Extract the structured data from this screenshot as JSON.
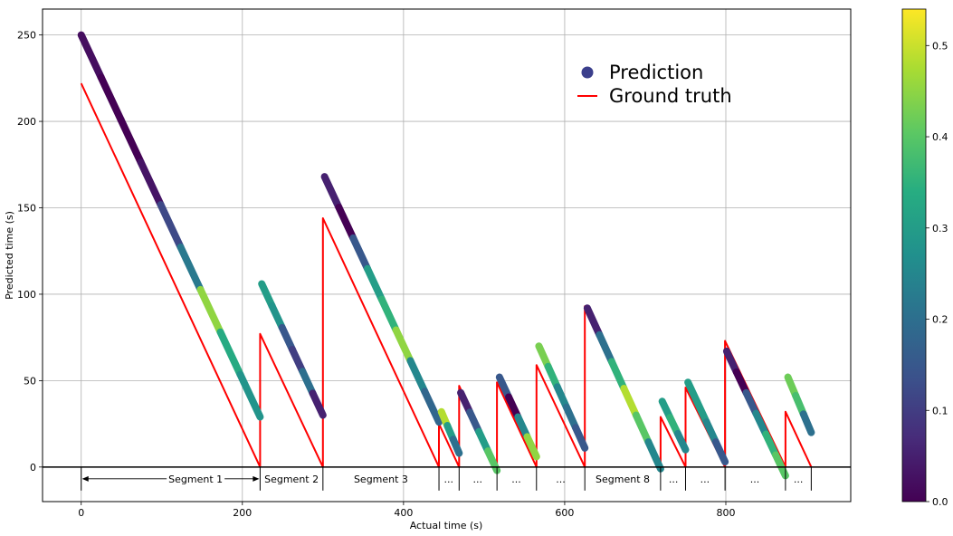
{
  "chart_data": {
    "type": "line",
    "xlabel": "Actual time (s)",
    "ylabel": "Predicted time (s)",
    "xlim": [
      -48,
      955
    ],
    "ylim": [
      -20,
      265
    ],
    "x_ticks": [
      0,
      200,
      400,
      600,
      800
    ],
    "y_ticks": [
      0,
      50,
      100,
      150,
      200,
      250
    ],
    "grid": true,
    "legend": {
      "position": "top-right",
      "entries": [
        "Prediction",
        "Ground truth"
      ]
    },
    "colorbar": {
      "min": 0.0,
      "max": 0.54,
      "ticks": [
        0.0,
        0.1,
        0.2,
        0.3,
        0.4,
        0.5
      ],
      "colormap": "viridis"
    },
    "series": [
      {
        "name": "Ground truth",
        "color": "#ff0000",
        "x": [
          0,
          222,
          222,
          300,
          300,
          444,
          444,
          469,
          469,
          516,
          516,
          565,
          565,
          625,
          625,
          719,
          719,
          750,
          750,
          799,
          799,
          874,
          874,
          906
        ],
        "y": [
          222,
          0,
          77,
          0,
          144,
          0,
          25,
          0,
          47,
          0,
          49,
          0,
          59,
          0,
          93,
          0,
          29,
          0,
          46,
          0,
          73,
          0,
          32,
          0
        ]
      },
      {
        "name": "Prediction",
        "segments": [
          {
            "x0": 0,
            "y0": 250,
            "x1": 222,
            "y1": 29,
            "colors": [
              0.02,
              0.0,
              0.0,
              0.03,
              0.12,
              0.22,
              0.45,
              0.33,
              0.28
            ]
          },
          {
            "x0": 224,
            "y0": 106,
            "x1": 300,
            "y1": 30,
            "colors": [
              0.3,
              0.28,
              0.15,
              0.1,
              0.2,
              0.05
            ]
          },
          {
            "x0": 302,
            "y0": 168,
            "x1": 444,
            "y1": 26,
            "colors": [
              0.05,
              0.0,
              0.15,
              0.3,
              0.35,
              0.45,
              0.25,
              0.18
            ]
          },
          {
            "x0": 447,
            "y0": 32,
            "x1": 469,
            "y1": 8,
            "colors": [
              0.48,
              0.3,
              0.2
            ]
          },
          {
            "x0": 471,
            "y0": 43,
            "x1": 516,
            "y1": -2,
            "colors": [
              0.05,
              0.15,
              0.3,
              0.4
            ]
          },
          {
            "x0": 519,
            "y0": 52,
            "x1": 565,
            "y1": 6,
            "colors": [
              0.15,
              0.0,
              0.25,
              0.45
            ]
          },
          {
            "x0": 568,
            "y0": 70,
            "x1": 625,
            "y1": 11,
            "colors": [
              0.43,
              0.35,
              0.25,
              0.2,
              0.15
            ]
          },
          {
            "x0": 628,
            "y0": 92,
            "x1": 719,
            "y1": -1,
            "colors": [
              0.05,
              0.2,
              0.35,
              0.48,
              0.4,
              0.25
            ]
          },
          {
            "x0": 721,
            "y0": 38,
            "x1": 750,
            "y1": 10,
            "colors": [
              0.3,
              0.35,
              0.25
            ]
          },
          {
            "x0": 753,
            "y0": 49,
            "x1": 799,
            "y1": 3,
            "colors": [
              0.3,
              0.3,
              0.25,
              0.15
            ]
          },
          {
            "x0": 801,
            "y0": 67,
            "x1": 874,
            "y1": -5,
            "colors": [
              0.05,
              0.0,
              0.15,
              0.25,
              0.35,
              0.4
            ]
          },
          {
            "x0": 877,
            "y0": 52,
            "x1": 906,
            "y1": 20,
            "colors": [
              0.42,
              0.38,
              0.2
            ]
          }
        ]
      }
    ],
    "segment_markers": {
      "baseline_y": 0,
      "boundaries": [
        0,
        222,
        300,
        444,
        469,
        516,
        565,
        625,
        719,
        750,
        799,
        874,
        906
      ],
      "labels": [
        {
          "x": 142,
          "text": "Segment 1"
        },
        {
          "x": 261,
          "text": "Segment 2"
        },
        {
          "x": 372,
          "text": "Segment 3"
        },
        {
          "x": 456,
          "text": "..."
        },
        {
          "x": 492,
          "text": "..."
        },
        {
          "x": 540,
          "text": "..."
        },
        {
          "x": 595,
          "text": "..."
        },
        {
          "x": 672,
          "text": "Segment 8"
        },
        {
          "x": 735,
          "text": "..."
        },
        {
          "x": 774,
          "text": "..."
        },
        {
          "x": 836,
          "text": "..."
        },
        {
          "x": 890,
          "text": "..."
        }
      ]
    }
  }
}
